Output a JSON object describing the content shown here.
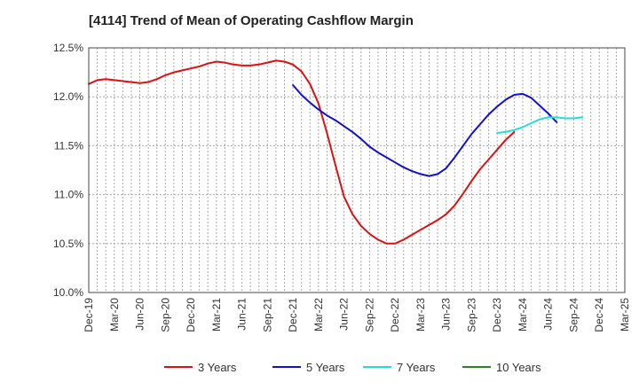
{
  "chart_data": {
    "type": "line",
    "title": "[4114]  Trend of Mean of Operating Cashflow Margin",
    "xlabel": "",
    "ylabel": "",
    "ylim": [
      10.0,
      12.5
    ],
    "yticks": [
      10.0,
      10.5,
      11.0,
      11.5,
      12.0,
      12.5
    ],
    "ytick_labels": [
      "10.0%",
      "10.5%",
      "11.0%",
      "11.5%",
      "12.0%",
      "12.5%"
    ],
    "x_labels": [
      "Dec-19",
      "Mar-20",
      "Jun-20",
      "Sep-20",
      "Dec-20",
      "Mar-21",
      "Jun-21",
      "Sep-21",
      "Dec-21",
      "Mar-22",
      "Jun-22",
      "Sep-22",
      "Dec-22",
      "Mar-23",
      "Jun-23",
      "Sep-23",
      "Dec-23",
      "Mar-24",
      "Jun-24",
      "Sep-24",
      "Dec-24",
      "Mar-25"
    ],
    "grid": true,
    "legend_position": "bottom",
    "series": [
      {
        "name": "3 Years",
        "color": "#dd1111",
        "start_index": 0,
        "values": [
          12.13,
          12.17,
          12.18,
          12.17,
          12.16,
          12.15,
          12.14,
          12.15,
          12.18,
          12.22,
          12.25,
          12.27,
          12.29,
          12.31,
          12.34,
          12.36,
          12.35,
          12.33,
          12.32,
          12.32,
          12.33,
          12.35,
          12.37,
          12.36,
          12.33,
          12.26,
          12.13,
          11.93,
          11.63,
          11.3,
          10.98,
          10.8,
          10.68,
          10.6,
          10.54,
          10.5,
          10.5,
          10.54,
          10.59,
          10.64,
          10.69,
          10.74,
          10.8,
          10.89,
          11.01,
          11.14,
          11.26,
          11.36,
          11.46,
          11.56,
          11.64
        ]
      },
      {
        "name": "5 Years",
        "color": "#1111cc",
        "start_index": 24,
        "values": [
          12.12,
          12.02,
          11.94,
          11.87,
          11.81,
          11.76,
          11.7,
          11.64,
          11.57,
          11.49,
          11.43,
          11.38,
          11.33,
          11.28,
          11.24,
          11.21,
          11.19,
          11.21,
          11.27,
          11.38,
          11.5,
          11.62,
          11.72,
          11.82,
          11.9,
          11.97,
          12.02,
          12.03,
          11.99,
          11.91,
          11.83,
          11.74
        ]
      },
      {
        "name": "7 Years",
        "color": "#22dddd",
        "start_index": 48,
        "values": [
          11.63,
          11.64,
          11.66,
          11.69,
          11.73,
          11.77,
          11.79,
          11.79,
          11.78,
          11.78,
          11.79
        ]
      },
      {
        "name": "10 Years",
        "color": "#228822",
        "start_index": 0,
        "values": []
      }
    ]
  }
}
